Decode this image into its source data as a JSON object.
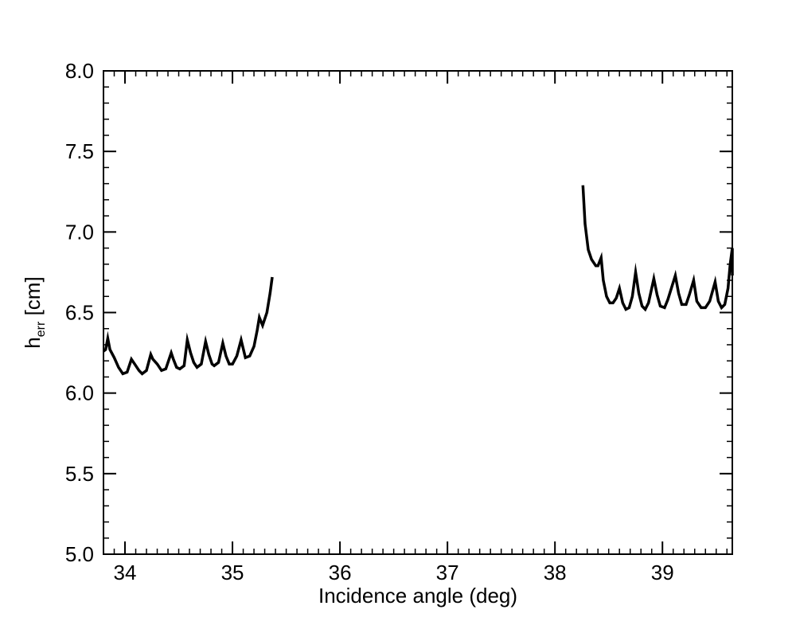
{
  "chart_data": {
    "type": "line",
    "title": "",
    "xlabel": "Incidence angle (deg)",
    "ylabel": {
      "main": "h",
      "subscript": "err",
      "unit": " [cm]"
    },
    "xlim": [
      33.8,
      39.65
    ],
    "ylim": [
      5.0,
      8.0
    ],
    "xticks": [
      {
        "value": 34,
        "label": "34"
      },
      {
        "value": 35,
        "label": "35"
      },
      {
        "value": 36,
        "label": "36"
      },
      {
        "value": 37,
        "label": "37"
      },
      {
        "value": 38,
        "label": "38"
      },
      {
        "value": 39,
        "label": "39"
      }
    ],
    "yticks": [
      {
        "value": 5.0,
        "label": "5.0"
      },
      {
        "value": 5.5,
        "label": "5.5"
      },
      {
        "value": 6.0,
        "label": "6.0"
      },
      {
        "value": 6.5,
        "label": "6.5"
      },
      {
        "value": 7.0,
        "label": "7.0"
      },
      {
        "value": 7.5,
        "label": "7.5"
      },
      {
        "value": 8.0,
        "label": "8.0"
      }
    ],
    "x_minor_step": 0.1,
    "y_minor_step": 0.1,
    "grid": false,
    "line_color": "#000000",
    "series": [
      {
        "points": [
          [
            33.8,
            6.26
          ],
          [
            33.82,
            6.27
          ],
          [
            33.84,
            6.34
          ],
          [
            33.86,
            6.27
          ],
          [
            33.9,
            6.22
          ],
          [
            33.94,
            6.16
          ],
          [
            33.98,
            6.12
          ],
          [
            34.02,
            6.13
          ],
          [
            34.06,
            6.21
          ],
          [
            34.09,
            6.18
          ],
          [
            34.13,
            6.14
          ],
          [
            34.16,
            6.12
          ],
          [
            34.2,
            6.14
          ],
          [
            34.24,
            6.24
          ],
          [
            34.26,
            6.21
          ],
          [
            34.3,
            6.18
          ],
          [
            34.34,
            6.14
          ],
          [
            34.38,
            6.15
          ],
          [
            34.43,
            6.25
          ],
          [
            34.45,
            6.21
          ],
          [
            34.48,
            6.16
          ],
          [
            34.51,
            6.15
          ],
          [
            34.55,
            6.17
          ],
          [
            34.58,
            6.33
          ],
          [
            34.61,
            6.25
          ],
          [
            34.64,
            6.19
          ],
          [
            34.67,
            6.16
          ],
          [
            34.71,
            6.18
          ],
          [
            34.75,
            6.32
          ],
          [
            34.78,
            6.24
          ],
          [
            34.81,
            6.18
          ],
          [
            34.83,
            6.17
          ],
          [
            34.87,
            6.19
          ],
          [
            34.91,
            6.31
          ],
          [
            34.94,
            6.23
          ],
          [
            34.97,
            6.18
          ],
          [
            35.0,
            6.18
          ],
          [
            35.04,
            6.23
          ],
          [
            35.08,
            6.33
          ],
          [
            35.12,
            6.22
          ],
          [
            35.16,
            6.23
          ],
          [
            35.2,
            6.29
          ],
          [
            35.23,
            6.39
          ],
          [
            35.25,
            6.47
          ],
          [
            35.28,
            6.42
          ],
          [
            35.32,
            6.5
          ],
          [
            35.35,
            6.62
          ],
          [
            35.37,
            6.72
          ]
        ]
      },
      {
        "points": [
          [
            38.26,
            7.29
          ],
          [
            38.28,
            7.05
          ],
          [
            38.31,
            6.89
          ],
          [
            38.34,
            6.83
          ],
          [
            38.38,
            6.79
          ],
          [
            38.4,
            6.79
          ],
          [
            38.43,
            6.84
          ],
          [
            38.45,
            6.7
          ],
          [
            38.48,
            6.6
          ],
          [
            38.51,
            6.56
          ],
          [
            38.54,
            6.56
          ],
          [
            38.57,
            6.59
          ],
          [
            38.6,
            6.65
          ],
          [
            38.63,
            6.56
          ],
          [
            38.66,
            6.52
          ],
          [
            38.69,
            6.53
          ],
          [
            38.72,
            6.6
          ],
          [
            38.75,
            6.75
          ],
          [
            38.78,
            6.62
          ],
          [
            38.81,
            6.54
          ],
          [
            38.84,
            6.52
          ],
          [
            38.87,
            6.56
          ],
          [
            38.92,
            6.71
          ],
          [
            38.95,
            6.61
          ],
          [
            38.98,
            6.54
          ],
          [
            39.02,
            6.53
          ],
          [
            39.05,
            6.58
          ],
          [
            39.12,
            6.73
          ],
          [
            39.15,
            6.62
          ],
          [
            39.18,
            6.55
          ],
          [
            39.22,
            6.55
          ],
          [
            39.25,
            6.61
          ],
          [
            39.29,
            6.7
          ],
          [
            39.32,
            6.57
          ],
          [
            39.36,
            6.53
          ],
          [
            39.4,
            6.53
          ],
          [
            39.44,
            6.57
          ],
          [
            39.49,
            6.69
          ],
          [
            39.52,
            6.57
          ],
          [
            39.55,
            6.53
          ],
          [
            39.58,
            6.55
          ],
          [
            39.61,
            6.65
          ],
          [
            39.63,
            6.8
          ],
          [
            39.65,
            6.9
          ],
          [
            39.65,
            6.73
          ]
        ]
      }
    ]
  }
}
